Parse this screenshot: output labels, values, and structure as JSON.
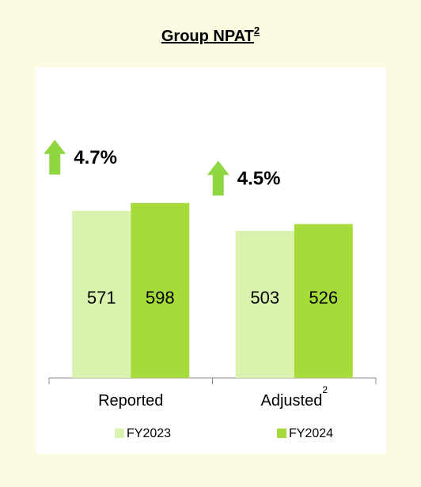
{
  "chart_data": {
    "type": "bar",
    "title": "Group NPAT",
    "title_note": "2",
    "categories": [
      "Reported",
      "Adjusted"
    ],
    "category_notes": [
      null,
      "2"
    ],
    "series": [
      {
        "name": "FY2023",
        "color": "#d9f2ad",
        "values": [
          571,
          503
        ]
      },
      {
        "name": "FY2024",
        "color": "#a5db3b",
        "values": [
          598,
          526
        ]
      }
    ],
    "ylim": [
      0,
      1000
    ],
    "annotations": [
      {
        "text": "4.7%",
        "category": 0,
        "color": "#8fd641"
      },
      {
        "text": "4.5%",
        "category": 1,
        "color": "#8fd641"
      }
    ],
    "legend": "bottom"
  }
}
